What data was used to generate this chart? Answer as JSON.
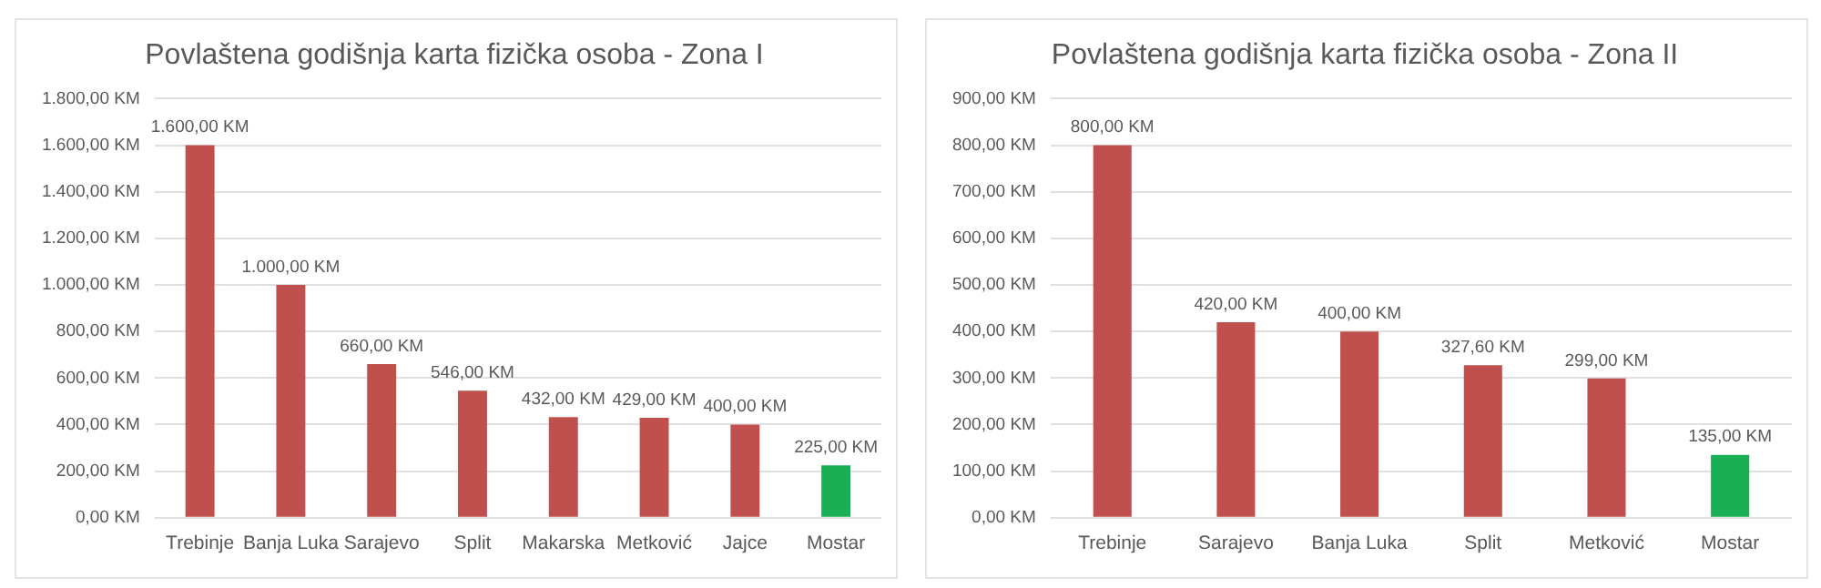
{
  "chart_data": [
    {
      "type": "bar",
      "title": "Povlaštena godišnja karta fizička osoba - Zona I",
      "categories": [
        "Trebinje",
        "Banja Luka",
        "Sarajevo",
        "Split",
        "Makarska",
        "Metković",
        "Jajce",
        "Mostar"
      ],
      "values": [
        1600,
        1000,
        660,
        546,
        432,
        429,
        400,
        225
      ],
      "colors": [
        "#c0504d",
        "#c0504d",
        "#c0504d",
        "#c0504d",
        "#c0504d",
        "#c0504d",
        "#c0504d",
        "#1aaf54"
      ],
      "value_labels": [
        "1.600,00 KM",
        "1.000,00 KM",
        "660,00 KM",
        "546,00 KM",
        "432,00 KM",
        "429,00 KM",
        "400,00 KM",
        "225,00 KM"
      ],
      "ylim": [
        0,
        1800
      ],
      "yticks": [
        {
          "value": 0,
          "label": "0,00 KM"
        },
        {
          "value": 200,
          "label": "200,00 KM"
        },
        {
          "value": 400,
          "label": "400,00 KM"
        },
        {
          "value": 600,
          "label": "600,00 KM"
        },
        {
          "value": 800,
          "label": "800,00 KM"
        },
        {
          "value": 1000,
          "label": "1.000,00 KM"
        },
        {
          "value": 1200,
          "label": "1.200,00 KM"
        },
        {
          "value": 1400,
          "label": "1.400,00 KM"
        },
        {
          "value": 1600,
          "label": "1.600,00 KM"
        },
        {
          "value": 1800,
          "label": "1.800,00 KM"
        }
      ],
      "grid": "y"
    },
    {
      "type": "bar",
      "title": "Povlaštena godišnja karta fizička osoba - Zona II",
      "categories": [
        "Trebinje",
        "Sarajevo",
        "Banja Luka",
        "Split",
        "Metković",
        "Mostar"
      ],
      "values": [
        800,
        420,
        400,
        327.6,
        299,
        135
      ],
      "colors": [
        "#c0504d",
        "#c0504d",
        "#c0504d",
        "#c0504d",
        "#c0504d",
        "#1aaf54"
      ],
      "value_labels": [
        "800,00 KM",
        "420,00 KM",
        "400,00 KM",
        "327,60 KM",
        "299,00 KM",
        "135,00 KM"
      ],
      "ylim": [
        0,
        900
      ],
      "yticks": [
        {
          "value": 0,
          "label": "0,00 KM"
        },
        {
          "value": 100,
          "label": "100,00 KM"
        },
        {
          "value": 200,
          "label": "200,00 KM"
        },
        {
          "value": 300,
          "label": "300,00 KM"
        },
        {
          "value": 400,
          "label": "400,00 KM"
        },
        {
          "value": 500,
          "label": "500,00 KM"
        },
        {
          "value": 600,
          "label": "600,00 KM"
        },
        {
          "value": 700,
          "label": "700,00 KM"
        },
        {
          "value": 800,
          "label": "800,00 KM"
        },
        {
          "value": 900,
          "label": "900,00 KM"
        }
      ],
      "grid": "y"
    }
  ]
}
